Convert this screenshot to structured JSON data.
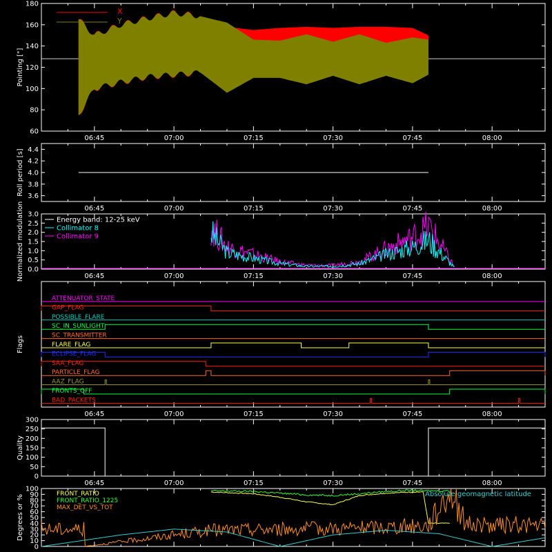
{
  "chart_data": [
    {
      "type": "area",
      "ylabel": "Pointing [\"]",
      "ylim": [
        60,
        180
      ],
      "yticks": [
        60,
        80,
        100,
        120,
        140,
        160,
        180
      ],
      "xticks": [
        "06:45",
        "07:00",
        "07:15",
        "07:30",
        "07:45",
        "08:00"
      ],
      "reference_level": 128,
      "legend": [
        {
          "name": "X",
          "color": "#ff0000"
        },
        {
          "name": "Y",
          "color": "#808000"
        }
      ],
      "envelope_time": [
        "06:42",
        "06:45",
        "06:50",
        "06:55",
        "07:00",
        "07:05",
        "07:10",
        "07:15",
        "07:20",
        "07:25",
        "07:30",
        "07:35",
        "07:40",
        "07:45",
        "07:48"
      ],
      "x_upper": [
        165,
        150,
        160,
        166,
        171,
        168,
        158,
        155,
        157,
        158,
        157,
        158,
        158,
        157,
        150
      ],
      "x_lower": [
        75,
        100,
        106,
        111,
        113,
        115,
        125,
        128,
        124,
        124,
        123,
        122,
        123,
        122,
        126
      ],
      "y_upper": [
        165,
        150,
        160,
        166,
        171,
        168,
        162,
        146,
        145,
        151,
        144,
        151,
        143,
        148,
        146
      ],
      "y_lower": [
        75,
        100,
        106,
        111,
        113,
        115,
        96,
        110,
        110,
        104,
        112,
        104,
        112,
        105,
        113
      ]
    },
    {
      "type": "line",
      "ylabel": "Roll period [s]",
      "ylim": [
        3.5,
        4.5
      ],
      "yticks": [
        3.6,
        3.8,
        4.0,
        4.2,
        4.4
      ],
      "xticks": [
        "06:45",
        "07:00",
        "07:15",
        "07:30",
        "07:45",
        "08:00"
      ],
      "series": [
        {
          "color": "#ffffff",
          "x": [
            "06:42",
            "07:48"
          ],
          "values": [
            4.0,
            4.0
          ]
        }
      ]
    },
    {
      "type": "line",
      "ylabel": "Normalized modulation",
      "ylim": [
        0,
        3.0
      ],
      "yticks": [
        0.0,
        0.5,
        1.0,
        1.5,
        2.0,
        2.5,
        3.0
      ],
      "xticks": [
        "06:45",
        "07:00",
        "07:15",
        "07:30",
        "07:45",
        "08:00"
      ],
      "legend": [
        {
          "name": "Energy band: 12-25 keV",
          "color": "#ffffff"
        },
        {
          "name": "Collimator 8",
          "color": "#00ffff"
        },
        {
          "name": "Collimator 9",
          "color": "#ff00ff"
        }
      ],
      "series": [
        {
          "name": "Collimator 8",
          "color": "#00ffff",
          "x": [
            "07:07",
            "07:10",
            "07:15",
            "07:20",
            "07:25",
            "07:30",
            "07:35",
            "07:40",
            "07:45",
            "07:48",
            "07:53"
          ],
          "values": [
            2.0,
            0.9,
            0.6,
            0.3,
            0.15,
            0.15,
            0.3,
            0.8,
            1.2,
            1.6,
            0.05
          ]
        },
        {
          "name": "Collimator 9",
          "color": "#ff00ff",
          "x": [
            "07:07",
            "07:10",
            "07:15",
            "07:20",
            "07:25",
            "07:30",
            "07:35",
            "07:40",
            "07:45",
            "07:48",
            "07:53"
          ],
          "values": [
            2.3,
            1.2,
            0.8,
            0.4,
            0.2,
            0.2,
            0.4,
            1.1,
            1.7,
            2.3,
            0.1
          ]
        }
      ]
    },
    {
      "type": "line",
      "ylabel": "Flags",
      "xticks": [
        "06:45",
        "07:00",
        "07:15",
        "07:30",
        "07:45",
        "08:00"
      ],
      "flags": [
        {
          "name": "ATTENUATOR_STATE",
          "color": "#ff00ff",
          "segments": []
        },
        {
          "name": "GAP_FLAG",
          "color": "#ff2000",
          "segments": [
            [
              "06:35",
              "07:07"
            ]
          ]
        },
        {
          "name": "POSSIBLE_FLARE",
          "color": "#00d0c0",
          "segments": []
        },
        {
          "name": "SC_IN_SUNLIGHT",
          "color": "#00ff40",
          "segments": [
            [
              "06:47",
              "07:48"
            ]
          ]
        },
        {
          "name": "SC_TRANSMITTER",
          "color": "#ff6a20",
          "segments": []
        },
        {
          "name": "FLARE_FLAG",
          "color": "#ffff40",
          "segments": [
            [
              "07:07",
              "07:24"
            ],
            [
              "07:33",
              "07:48"
            ]
          ]
        },
        {
          "name": "ECLIPSE_FLAG",
          "color": "#2030ff",
          "segments": [
            [
              "06:35",
              "06:47"
            ],
            [
              "07:48",
              "08:10"
            ]
          ]
        },
        {
          "name": "SAA_FLAG",
          "color": "#ff2000",
          "segments": [
            [
              "06:35",
              "07:06"
            ]
          ]
        },
        {
          "name": "PARTICLE_FLAG",
          "color": "#ff6a20",
          "segments": [
            [
              "07:06",
              "07:07"
            ],
            [
              "07:52",
              "08:10"
            ]
          ]
        },
        {
          "name": "AAZ_FLAG",
          "color": "#9a9a30",
          "segments": [
            [
              "06:47",
              "06:47"
            ],
            [
              "07:48",
              "07:48"
            ]
          ]
        },
        {
          "name": "FRONTS_OFF",
          "color": "#00ff40",
          "segments": [
            [
              "06:35",
              "06:43"
            ],
            [
              "07:52",
              "08:10"
            ]
          ]
        },
        {
          "name": "BAD_PACKETS",
          "color": "#ff2000",
          "segments": [
            [
              "07:37",
              "07:37"
            ],
            [
              "08:05",
              "08:05"
            ]
          ]
        }
      ]
    },
    {
      "type": "line",
      "ylabel": "Quality",
      "ylim": [
        0,
        300
      ],
      "yticks": [
        0,
        50,
        100,
        150,
        200,
        250,
        300
      ],
      "xticks": [
        "06:45",
        "07:00",
        "07:15",
        "07:30",
        "07:45",
        "08:00"
      ],
      "series": [
        {
          "color": "#ffffff",
          "x": [
            "06:35",
            "06:47",
            "06:47",
            "07:48",
            "07:48",
            "08:10"
          ],
          "values": [
            255,
            255,
            0,
            0,
            255,
            255
          ]
        }
      ]
    },
    {
      "type": "line",
      "ylabel": "Degrees or %",
      "ylim": [
        0,
        100
      ],
      "yticks": [
        0,
        10,
        20,
        30,
        40,
        50,
        60,
        70,
        80,
        90,
        100
      ],
      "legend": [
        {
          "name": "FRONT_RATIO",
          "color": "#ffff40"
        },
        {
          "name": "FRONT_RATIO_1225",
          "color": "#30ff30"
        },
        {
          "name": "MAX_DET_VS_TOT",
          "color": "#ff9020"
        },
        {
          "name": "Absolute geomagnetic latitude",
          "color": "#30d0d0"
        }
      ],
      "series": [
        {
          "name": "FRONT_RATIO",
          "color": "#ffff40",
          "x": [
            "07:07",
            "07:15",
            "07:20",
            "07:25",
            "07:30",
            "07:35",
            "07:40",
            "07:45",
            "07:47",
            "07:48",
            "07:52"
          ],
          "values": [
            94,
            91,
            85,
            77,
            72,
            88,
            92,
            94,
            94,
            40,
            40
          ]
        },
        {
          "name": "FRONT_RATIO_1225",
          "color": "#30ff30",
          "x": [
            "07:07",
            "07:15",
            "07:20",
            "07:25",
            "07:30",
            "07:35",
            "07:40",
            "07:45",
            "07:47",
            "07:52"
          ],
          "values": [
            96,
            95,
            92,
            89,
            88,
            91,
            95,
            97,
            96,
            96
          ]
        },
        {
          "name": "MAX_DET_VS_TOT",
          "color": "#ff9020",
          "x": [
            "06:35",
            "06:43",
            "06:43",
            "07:07",
            "07:20",
            "07:35",
            "07:48",
            "07:52",
            "07:55",
            "08:00",
            "08:05",
            "08:10"
          ],
          "values": [
            30,
            30,
            0,
            28,
            30,
            32,
            36,
            100,
            40,
            35,
            38,
            35
          ]
        },
        {
          "name": "Absolute geomagnetic latitude",
          "color": "#30d0d0",
          "x": [
            "06:35",
            "06:50",
            "07:00",
            "07:10",
            "07:20",
            "07:30",
            "07:40",
            "07:50",
            "08:00",
            "08:10"
          ],
          "values": [
            0,
            20,
            30,
            25,
            0,
            20,
            28,
            22,
            0,
            15
          ]
        }
      ]
    }
  ]
}
